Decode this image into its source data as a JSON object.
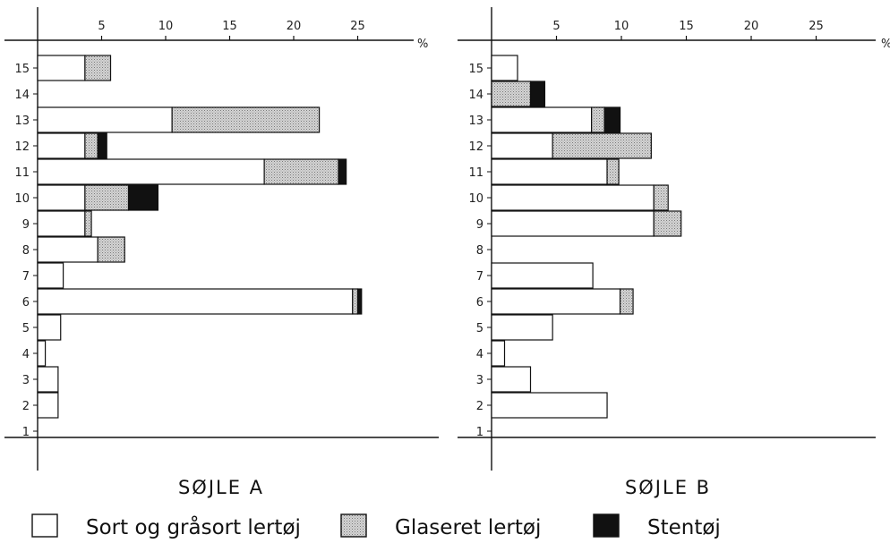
{
  "chart_data": [
    {
      "type": "bar",
      "title": "SØJLE A",
      "unit": "%",
      "x_ticks": [
        5,
        10,
        15,
        20,
        25
      ],
      "xlim": [
        0,
        25
      ],
      "layers": [
        "15",
        "14",
        "13",
        "12",
        "11",
        "10",
        "9",
        "8",
        "7",
        "6",
        "5",
        "4",
        "3",
        "2",
        "1"
      ],
      "series": [
        {
          "name": "Sort og gråsort lertøj",
          "values": [
            3.7,
            0,
            10.5,
            3.7,
            17.7,
            3.7,
            3.7,
            4.7,
            2.0,
            24.6,
            1.8,
            0.6,
            1.6,
            1.6,
            0
          ]
        },
        {
          "name": "Glaseret lertøj",
          "values": [
            2.0,
            0,
            11.5,
            1.0,
            5.8,
            3.4,
            0.5,
            2.1,
            0,
            0.4,
            0,
            0,
            0,
            0,
            0
          ]
        },
        {
          "name": "Stentøj",
          "values": [
            0,
            0,
            0,
            0.7,
            0.6,
            2.3,
            0,
            0,
            0,
            0.3,
            0,
            0,
            0,
            0,
            0
          ]
        }
      ]
    },
    {
      "type": "bar",
      "title": "SØJLE B",
      "unit": "%",
      "x_ticks": [
        5,
        10,
        15,
        20,
        25
      ],
      "xlim": [
        0,
        25
      ],
      "layers": [
        "15",
        "14",
        "13",
        "12",
        "11",
        "10",
        "9",
        "8",
        "7",
        "6",
        "5",
        "4",
        "3",
        "2",
        "1"
      ],
      "series": [
        {
          "name": "Sort og gråsort lertøj",
          "values": [
            2.0,
            0,
            7.7,
            4.7,
            8.9,
            12.5,
            12.5,
            0,
            7.8,
            9.9,
            4.7,
            1.0,
            3.0,
            8.9,
            0
          ]
        },
        {
          "name": "Glaseret lertøj",
          "values": [
            0,
            3.0,
            1.0,
            7.6,
            0.9,
            1.1,
            2.1,
            0,
            0,
            1.0,
            0,
            0,
            0,
            0,
            0
          ]
        },
        {
          "name": "Stentøj",
          "values": [
            0,
            1.1,
            1.2,
            0,
            0,
            0,
            0,
            0,
            0,
            0,
            0,
            0,
            0,
            0,
            0
          ]
        }
      ]
    }
  ],
  "legend": [
    {
      "label": "Sort og gråsort lertøj",
      "color": "#ffffff",
      "pattern": "open"
    },
    {
      "label": "Glaseret lertøj",
      "color": "#c4c4c4",
      "pattern": "stipple"
    },
    {
      "label": "Stentøj",
      "color": "#111111",
      "pattern": "solid"
    }
  ],
  "colors": {
    "open": "#ffffff",
    "stipple": "#c4c4c4",
    "solid": "#111111",
    "ink": "#111111"
  }
}
